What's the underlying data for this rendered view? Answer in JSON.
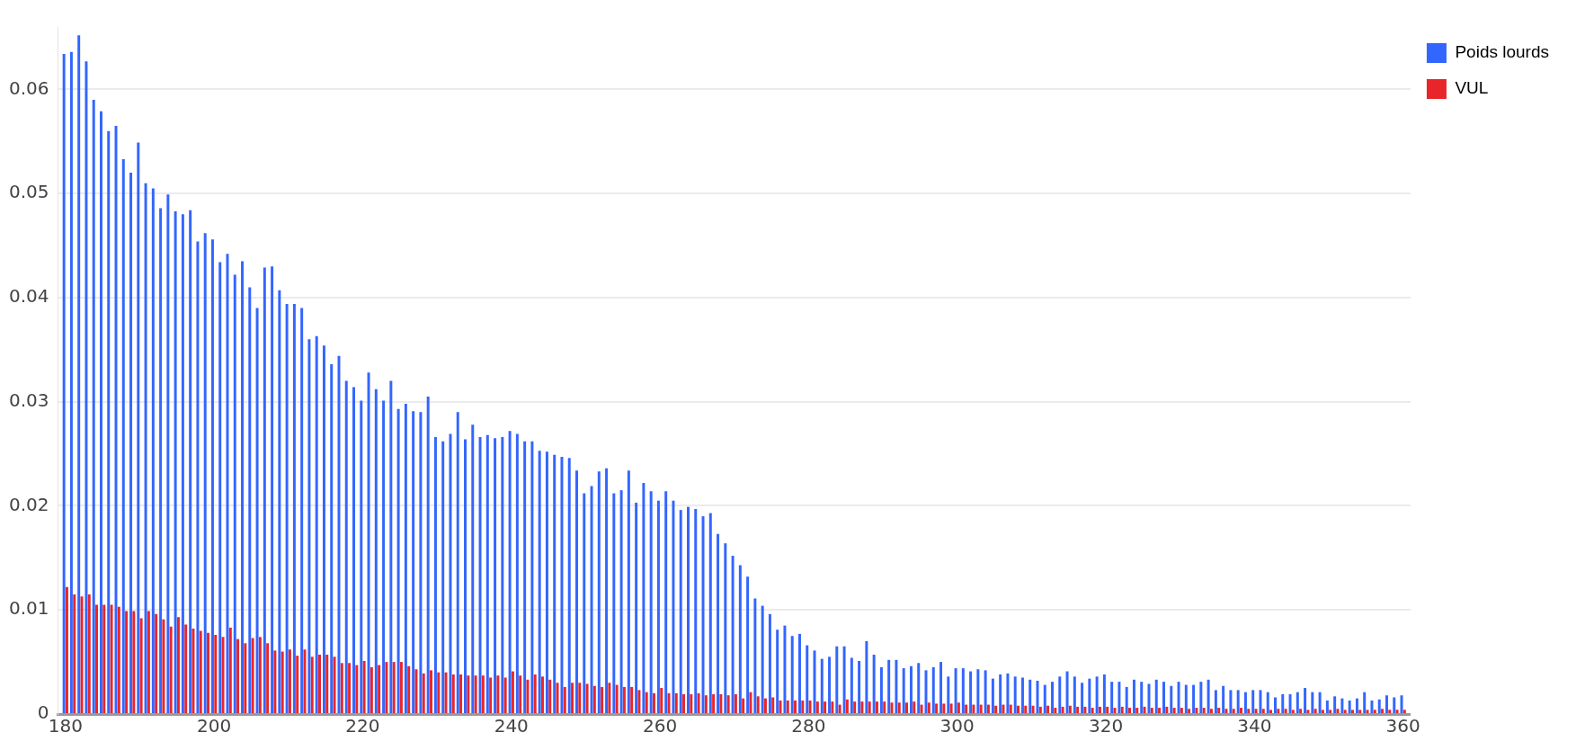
{
  "chart_data": {
    "type": "bar",
    "x": [
      180,
      181,
      182,
      183,
      184,
      185,
      186,
      187,
      188,
      189,
      190,
      191,
      192,
      193,
      194,
      195,
      196,
      197,
      198,
      199,
      200,
      201,
      202,
      203,
      204,
      205,
      206,
      207,
      208,
      209,
      210,
      211,
      212,
      213,
      214,
      215,
      216,
      217,
      218,
      219,
      220,
      221,
      222,
      223,
      224,
      225,
      226,
      227,
      228,
      229,
      230,
      231,
      232,
      233,
      234,
      235,
      236,
      237,
      238,
      239,
      240,
      241,
      242,
      243,
      244,
      245,
      246,
      247,
      248,
      249,
      250,
      251,
      252,
      253,
      254,
      255,
      256,
      257,
      258,
      259,
      260,
      261,
      262,
      263,
      264,
      265,
      266,
      267,
      268,
      269,
      270,
      271,
      272,
      273,
      274,
      275,
      276,
      277,
      278,
      279,
      280,
      281,
      282,
      283,
      284,
      285,
      286,
      287,
      288,
      289,
      290,
      291,
      292,
      293,
      294,
      295,
      296,
      297,
      298,
      299,
      300,
      301,
      302,
      303,
      304,
      305,
      306,
      307,
      308,
      309,
      310,
      311,
      312,
      313,
      314,
      315,
      316,
      317,
      318,
      319,
      320,
      321,
      322,
      323,
      324,
      325,
      326,
      327,
      328,
      329,
      330,
      331,
      332,
      333,
      334,
      335,
      336,
      337,
      338,
      339,
      340,
      341,
      342,
      343,
      344,
      345,
      346,
      347,
      348,
      349,
      350,
      351,
      352,
      353,
      354,
      355,
      356,
      357,
      358,
      359,
      360
    ],
    "series": [
      {
        "name": "Poids lourds",
        "color": "#3366ff",
        "values": [
          0.0634,
          0.0636,
          0.0652,
          0.0627,
          0.059,
          0.0579,
          0.056,
          0.0565,
          0.0533,
          0.052,
          0.0549,
          0.051,
          0.0505,
          0.0486,
          0.0499,
          0.0483,
          0.048,
          0.0484,
          0.0454,
          0.0462,
          0.0456,
          0.0434,
          0.0442,
          0.0422,
          0.0435,
          0.041,
          0.039,
          0.0429,
          0.043,
          0.0407,
          0.0394,
          0.0394,
          0.039,
          0.036,
          0.0363,
          0.0354,
          0.0336,
          0.0344,
          0.032,
          0.0314,
          0.0301,
          0.0328,
          0.0312,
          0.0301,
          0.032,
          0.0293,
          0.0298,
          0.0291,
          0.029,
          0.0305,
          0.0266,
          0.0262,
          0.0269,
          0.029,
          0.0264,
          0.0278,
          0.0266,
          0.0268,
          0.0265,
          0.0266,
          0.0272,
          0.0269,
          0.0262,
          0.0262,
          0.0253,
          0.0252,
          0.0249,
          0.0247,
          0.0246,
          0.0234,
          0.0212,
          0.0219,
          0.0233,
          0.0236,
          0.0212,
          0.0215,
          0.0234,
          0.0203,
          0.0222,
          0.0214,
          0.0205,
          0.0214,
          0.0205,
          0.0196,
          0.0199,
          0.0197,
          0.019,
          0.0193,
          0.0173,
          0.0164,
          0.0152,
          0.0143,
          0.0132,
          0.0111,
          0.0104,
          0.0096,
          0.0081,
          0.0085,
          0.0075,
          0.0077,
          0.0066,
          0.0061,
          0.0053,
          0.0055,
          0.0065,
          0.0065,
          0.0054,
          0.0051,
          0.007,
          0.0057,
          0.0045,
          0.0052,
          0.0052,
          0.0044,
          0.0046,
          0.0049,
          0.0042,
          0.0045,
          0.005,
          0.0036,
          0.0044,
          0.0044,
          0.0041,
          0.0043,
          0.0042,
          0.0034,
          0.0038,
          0.0039,
          0.0036,
          0.0035,
          0.0033,
          0.0032,
          0.0028,
          0.0031,
          0.0036,
          0.0041,
          0.0036,
          0.003,
          0.0034,
          0.0036,
          0.0038,
          0.0031,
          0.0031,
          0.0026,
          0.0033,
          0.0031,
          0.0029,
          0.0033,
          0.0031,
          0.0027,
          0.0031,
          0.0028,
          0.0028,
          0.0031,
          0.0033,
          0.0023,
          0.0027,
          0.0023,
          0.0023,
          0.0021,
          0.0023,
          0.0023,
          0.0021,
          0.0016,
          0.0019,
          0.0019,
          0.0021,
          0.0025,
          0.0021,
          0.0021,
          0.0013,
          0.0017,
          0.0015,
          0.0013,
          0.0015,
          0.0021,
          0.0013,
          0.0014,
          0.0018,
          0.0016,
          0.0018
        ]
      },
      {
        "name": "VUL",
        "color": "#e8262a",
        "values": [
          0.0122,
          0.0115,
          0.0113,
          0.0115,
          0.0105,
          0.0105,
          0.0105,
          0.0103,
          0.0099,
          0.0099,
          0.0092,
          0.0099,
          0.0096,
          0.0091,
          0.0084,
          0.0093,
          0.0086,
          0.0082,
          0.008,
          0.0078,
          0.0076,
          0.0074,
          0.0083,
          0.0072,
          0.0068,
          0.0073,
          0.0074,
          0.0068,
          0.0061,
          0.006,
          0.0062,
          0.0056,
          0.0062,
          0.0055,
          0.0057,
          0.0057,
          0.0055,
          0.0049,
          0.0049,
          0.0047,
          0.0051,
          0.0045,
          0.0047,
          0.005,
          0.005,
          0.005,
          0.0046,
          0.0043,
          0.0039,
          0.0042,
          0.004,
          0.004,
          0.0038,
          0.0038,
          0.0037,
          0.0037,
          0.0037,
          0.0035,
          0.0037,
          0.0035,
          0.0041,
          0.0037,
          0.0033,
          0.0038,
          0.0036,
          0.0033,
          0.003,
          0.0026,
          0.003,
          0.003,
          0.0029,
          0.0027,
          0.0026,
          0.003,
          0.0028,
          0.0026,
          0.0026,
          0.0023,
          0.0021,
          0.002,
          0.0025,
          0.002,
          0.002,
          0.0019,
          0.0019,
          0.002,
          0.0018,
          0.0019,
          0.0019,
          0.0018,
          0.0019,
          0.0015,
          0.0021,
          0.0017,
          0.0015,
          0.0016,
          0.0013,
          0.0013,
          0.0013,
          0.0013,
          0.0013,
          0.0012,
          0.0012,
          0.0012,
          0.0009,
          0.0014,
          0.0012,
          0.0012,
          0.0012,
          0.0012,
          0.0012,
          0.0011,
          0.0011,
          0.0011,
          0.0012,
          0.0009,
          0.0011,
          0.001,
          0.001,
          0.001,
          0.0011,
          0.0009,
          0.0009,
          0.0009,
          0.0009,
          0.0008,
          0.0009,
          0.0009,
          0.0008,
          0.0008,
          0.0008,
          0.0007,
          0.0008,
          0.0006,
          0.0007,
          0.0008,
          0.0007,
          0.0007,
          0.0006,
          0.0007,
          0.0007,
          0.0006,
          0.0007,
          0.0006,
          0.0006,
          0.0007,
          0.0006,
          0.0006,
          0.0007,
          0.0006,
          0.0006,
          0.0005,
          0.0006,
          0.0006,
          0.0005,
          0.0006,
          0.0005,
          0.0005,
          0.0006,
          0.0005,
          0.0005,
          0.0005,
          0.0004,
          0.0005,
          0.0005,
          0.0004,
          0.0005,
          0.0004,
          0.0005,
          0.0004,
          0.0004,
          0.0005,
          0.0004,
          0.0004,
          0.0004,
          0.0004,
          0.0004,
          0.0005,
          0.0004,
          0.0004,
          0.0004
        ]
      }
    ],
    "xlim": [
      179,
      361
    ],
    "xticks": [
      180,
      200,
      220,
      240,
      260,
      280,
      300,
      320,
      340,
      360
    ],
    "ylim": [
      0,
      0.066
    ],
    "yticks": [
      0,
      0.01,
      0.02,
      0.03,
      0.04,
      0.05,
      0.06
    ],
    "grid": "y",
    "legend": "top right"
  }
}
